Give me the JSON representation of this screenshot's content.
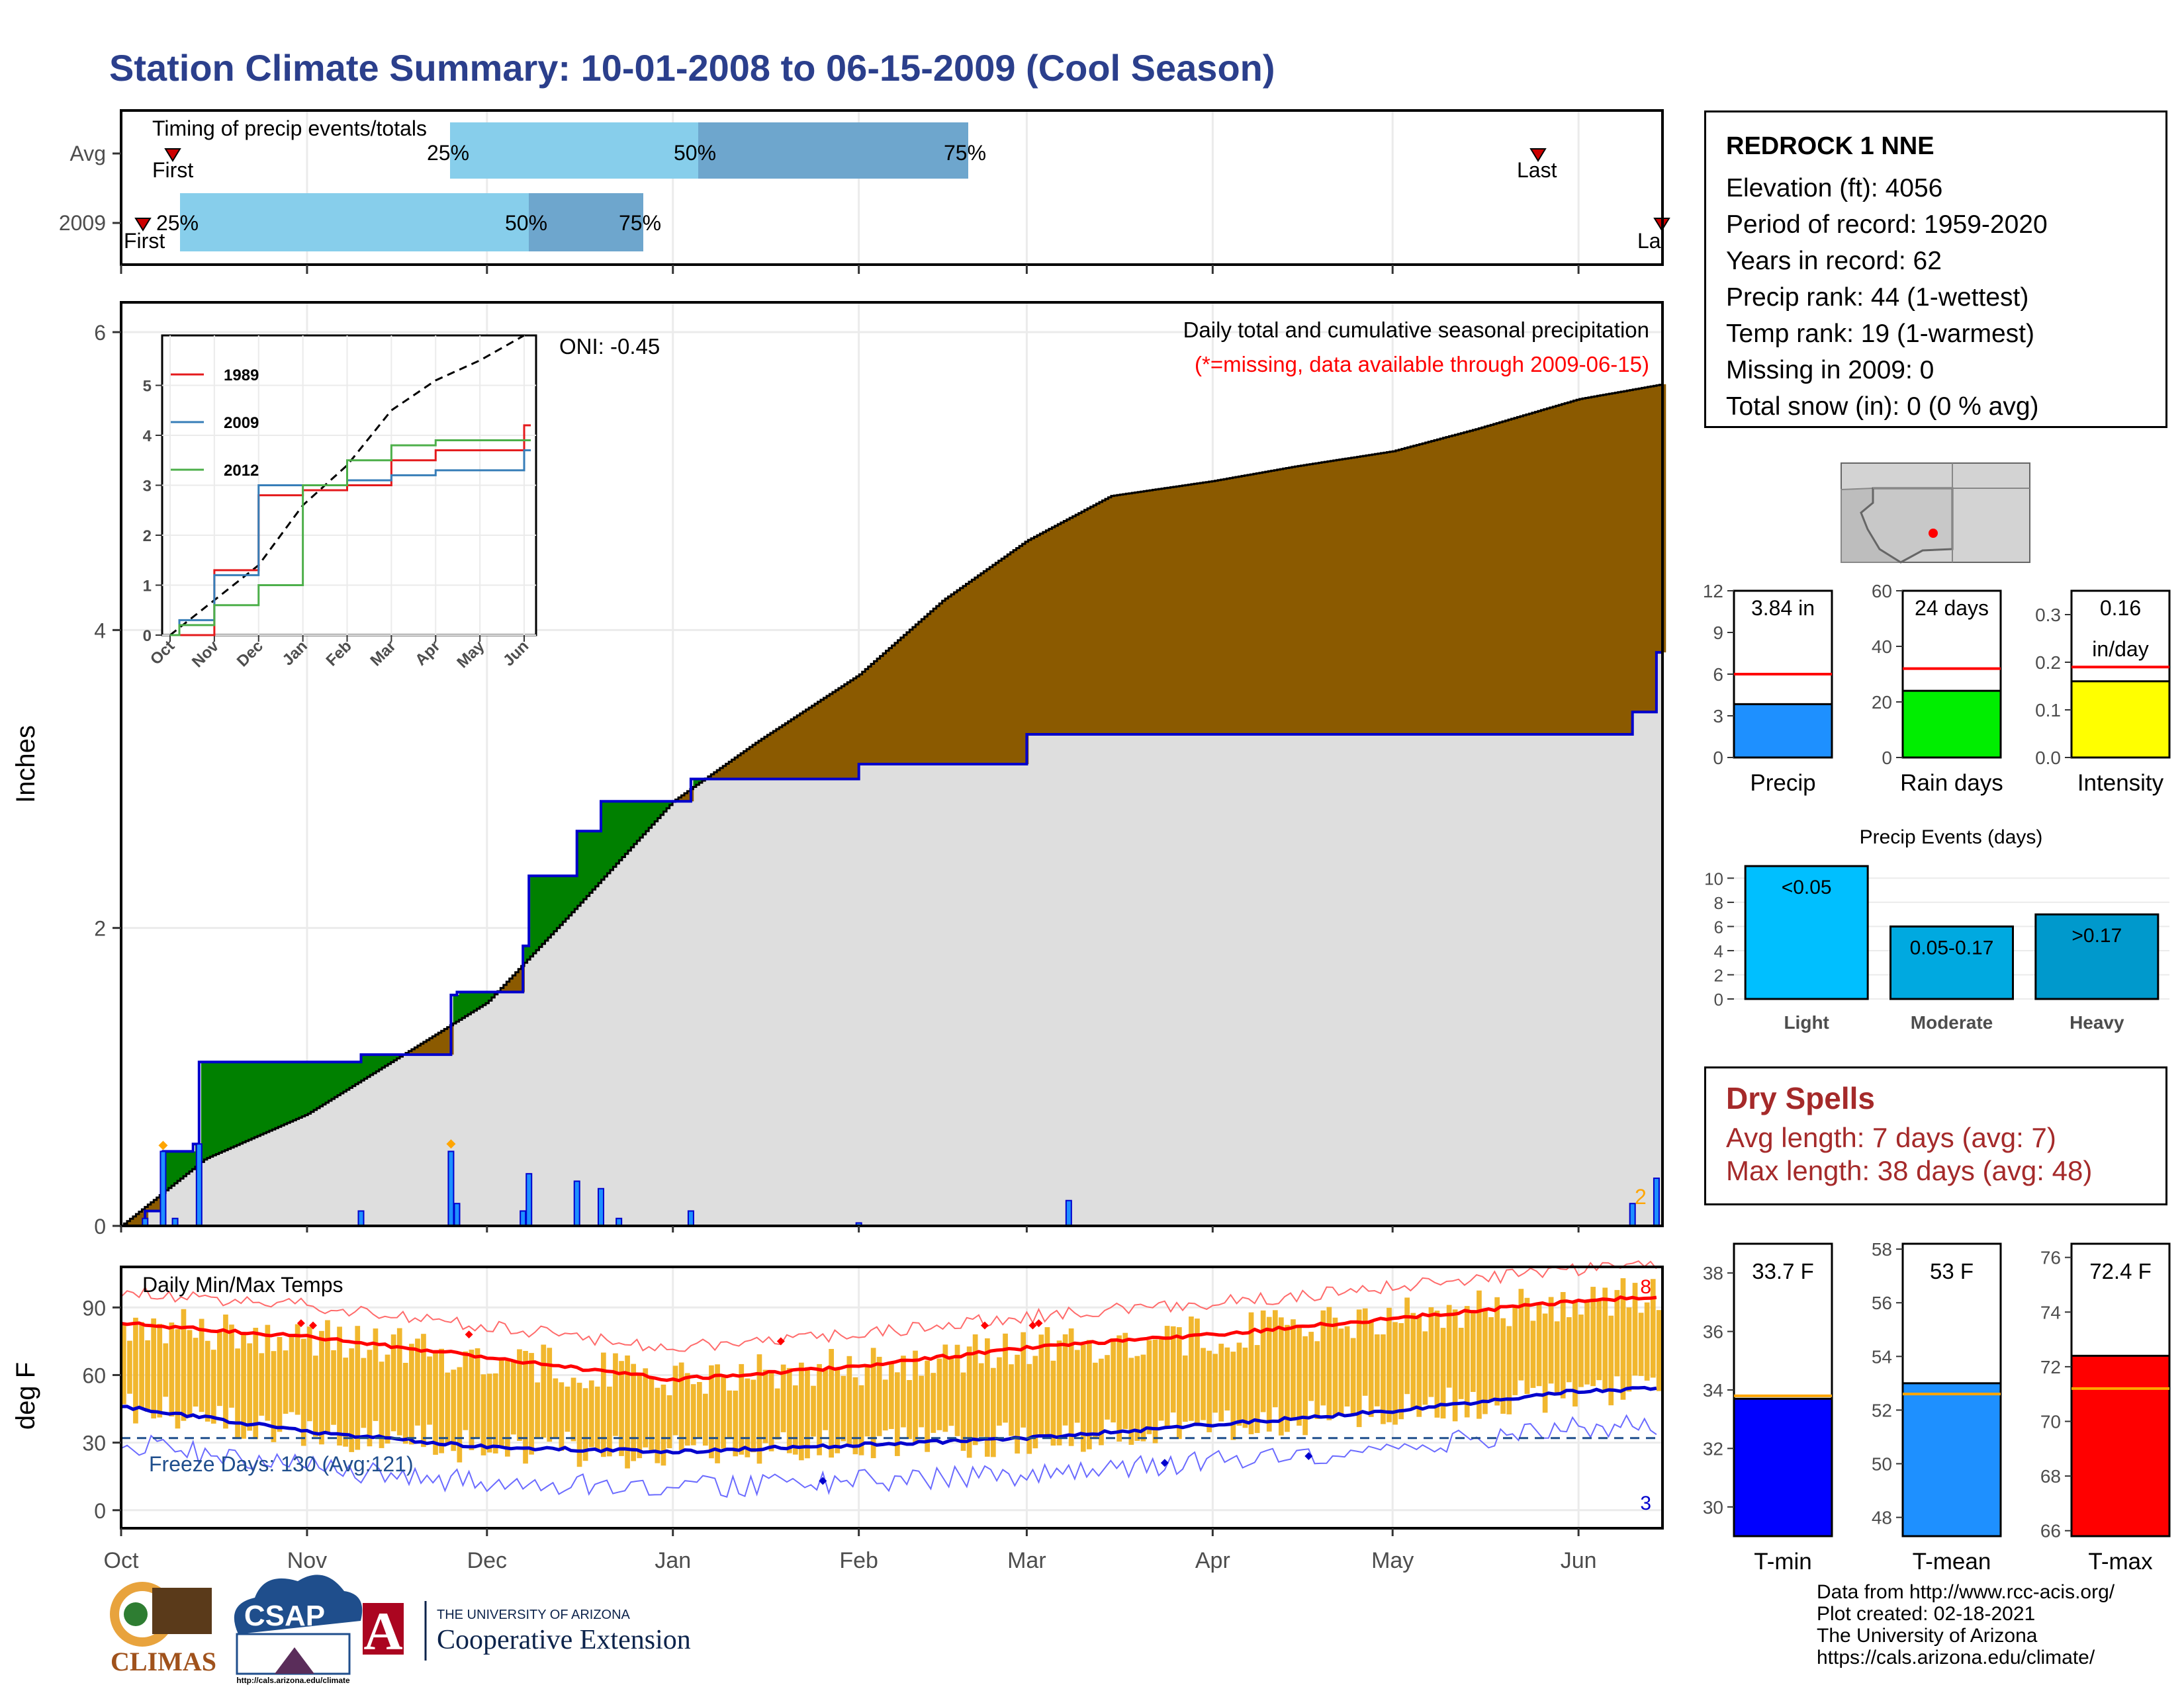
{
  "title": "Station Climate Summary: 10-01-2008 to 06-15-2009 (Cool Season)",
  "timing_panel": {
    "title": "Timing of precip events/totals",
    "rows": [
      {
        "label": "Avg",
        "first": "First",
        "p25": "25%",
        "p50": "50%",
        "p75": "75%",
        "last": "Last"
      },
      {
        "label": "2009",
        "first": "First",
        "p25": "25%",
        "p50": "50%",
        "p75": "75%",
        "last": "Last"
      }
    ]
  },
  "station": {
    "name": "REDROCK 1 NNE",
    "lines": [
      "Elevation (ft): 4056",
      "Period of record: 1959-2020",
      "Years in record: 62",
      "Precip rank: 44 (1-wettest)",
      "Temp rank: 19 (1-warmest)",
      "Missing in 2009: 0",
      "Total snow (in): 0 (0 % avg)"
    ]
  },
  "main_panel": {
    "ylabel": "Inches",
    "legend_title": "Daily total and cumulative seasonal precipitation",
    "legend_note": "(*=missing, data available through 2009-06-15)",
    "oni": "ONI: -0.45",
    "count_label": "2",
    "y_ticks": [
      "0",
      "2",
      "4",
      "6"
    ]
  },
  "inset": {
    "series": [
      "1989",
      "2009",
      "2012"
    ],
    "colors": [
      "#e41a1c",
      "#377eb8",
      "#4daf4a"
    ],
    "x_ticks": [
      "Oct",
      "Nov",
      "Dec",
      "Jan",
      "Feb",
      "Mar",
      "Apr",
      "May",
      "Jun"
    ],
    "y_ticks": [
      "0",
      "1",
      "2",
      "3",
      "4",
      "5"
    ]
  },
  "temp_panel": {
    "title": "Daily Min/Max Temps",
    "ylabel": "deg F",
    "freeze": "Freeze Days: 130 (Avg:121)",
    "count_max": "8",
    "count_min": "3",
    "y_ticks": [
      "0",
      "30",
      "60",
      "90"
    ]
  },
  "x_axis": [
    "Oct",
    "Nov",
    "Dec",
    "Jan",
    "Feb",
    "Mar",
    "Apr",
    "May",
    "Jun"
  ],
  "mini_bars": [
    {
      "label": "Precip",
      "value_text": "3.84 in",
      "ticks": [
        "0",
        "3",
        "6",
        "9",
        "12"
      ],
      "color": "#1e90ff"
    },
    {
      "label": "Rain days",
      "value_text": "24 days",
      "ticks": [
        "0",
        "20",
        "40",
        "60"
      ],
      "color": "#00ee00"
    },
    {
      "label": "Intensity",
      "value_text": "0.16",
      "value_text2": "in/day",
      "ticks": [
        "0.0",
        "0.1",
        "0.2",
        "0.3"
      ],
      "color": "#ffff00"
    }
  ],
  "events": {
    "title": "Precip Events (days)",
    "cats": [
      "Light",
      "Moderate",
      "Heavy"
    ],
    "bar_labels": [
      "<0.05",
      "0.05-0.17",
      ">0.17"
    ],
    "ticks": [
      "0",
      "2",
      "4",
      "6",
      "8",
      "10"
    ]
  },
  "dry": {
    "title": "Dry Spells",
    "avg": "Avg length: 7 days (avg: 7)",
    "max": "Max length: 38 days (avg: 48)"
  },
  "temp_bars": [
    {
      "label": "T-min",
      "value_text": "33.7 F",
      "ticks": [
        "30",
        "32",
        "34",
        "36",
        "38"
      ],
      "color": "#0000ff"
    },
    {
      "label": "T-mean",
      "value_text": "53 F",
      "ticks": [
        "48",
        "50",
        "52",
        "54",
        "56",
        "58"
      ],
      "color": "#1e90ff"
    },
    {
      "label": "T-max",
      "value_text": "72.4 F",
      "ticks": [
        "66",
        "68",
        "70",
        "72",
        "74",
        "76"
      ],
      "color": "#ff0000"
    }
  ],
  "credits": [
    "Data from http://www.rcc-acis.org/",
    "Plot created: 02-18-2021",
    "The University of Arizona",
    "https://cals.arizona.edu/climate/"
  ],
  "logos": {
    "climas": "CLIMAS",
    "csap": "CSAP",
    "csap_url": "http://cals.arizona.edu/climate",
    "ua_small": "THE UNIVERSITY OF ARIZONA",
    "ua_big": "Cooperative Extension",
    "ua_letter": "A"
  },
  "chart_data": [
    {
      "type": "area",
      "title": "Daily total and cumulative seasonal precipitation",
      "ylabel": "Inches",
      "ylim": [
        0,
        6.2
      ],
      "x_range": [
        "2008-10-01",
        "2009-06-15"
      ],
      "cumulative_2009": [
        {
          "x": "2008-10-05",
          "y": 0.1
        },
        {
          "x": "2008-10-08",
          "y": 0.5
        },
        {
          "x": "2008-10-13",
          "y": 0.55
        },
        {
          "x": "2008-10-14",
          "y": 1.1
        },
        {
          "x": "2008-11-10",
          "y": 1.15
        },
        {
          "x": "2008-11-25",
          "y": 1.55
        },
        {
          "x": "2008-11-26",
          "y": 1.57
        },
        {
          "x": "2008-12-07",
          "y": 1.88
        },
        {
          "x": "2008-12-08",
          "y": 2.35
        },
        {
          "x": "2008-12-16",
          "y": 2.65
        },
        {
          "x": "2008-12-20",
          "y": 2.85
        },
        {
          "x": "2009-01-04",
          "y": 3.0
        },
        {
          "x": "2009-02-01",
          "y": 3.1
        },
        {
          "x": "2009-03-01",
          "y": 3.3
        },
        {
          "x": "2009-06-10",
          "y": 3.45
        },
        {
          "x": "2009-06-14",
          "y": 3.85
        }
      ],
      "cumulative_avg": [
        {
          "x": "2008-10-01",
          "y": 0.0
        },
        {
          "x": "2008-10-15",
          "y": 0.45
        },
        {
          "x": "2008-11-01",
          "y": 0.75
        },
        {
          "x": "2008-11-15",
          "y": 1.1
        },
        {
          "x": "2008-12-01",
          "y": 1.5
        },
        {
          "x": "2008-12-15",
          "y": 2.1
        },
        {
          "x": "2009-01-01",
          "y": 2.85
        },
        {
          "x": "2009-01-15",
          "y": 3.25
        },
        {
          "x": "2009-02-01",
          "y": 3.7
        },
        {
          "x": "2009-02-15",
          "y": 4.2
        },
        {
          "x": "2009-03-01",
          "y": 4.6
        },
        {
          "x": "2009-03-15",
          "y": 4.9
        },
        {
          "x": "2009-04-01",
          "y": 5.0
        },
        {
          "x": "2009-04-15",
          "y": 5.1
        },
        {
          "x": "2009-05-01",
          "y": 5.2
        },
        {
          "x": "2009-05-15",
          "y": 5.35
        },
        {
          "x": "2009-06-01",
          "y": 5.55
        },
        {
          "x": "2009-06-15",
          "y": 5.65
        }
      ],
      "daily_precip": [
        {
          "x": "2008-10-05",
          "y": 0.05
        },
        {
          "x": "2008-10-08",
          "y": 0.5
        },
        {
          "x": "2008-10-10",
          "y": 0.05
        },
        {
          "x": "2008-10-14",
          "y": 0.55
        },
        {
          "x": "2008-11-10",
          "y": 0.1
        },
        {
          "x": "2008-11-25",
          "y": 0.5
        },
        {
          "x": "2008-11-26",
          "y": 0.15
        },
        {
          "x": "2008-12-07",
          "y": 0.1
        },
        {
          "x": "2008-12-08",
          "y": 0.35
        },
        {
          "x": "2008-12-16",
          "y": 0.3
        },
        {
          "x": "2008-12-20",
          "y": 0.25
        },
        {
          "x": "2008-12-23",
          "y": 0.05
        },
        {
          "x": "2009-01-04",
          "y": 0.1
        },
        {
          "x": "2009-02-01",
          "y": 0.02
        },
        {
          "x": "2009-03-08",
          "y": 0.17
        },
        {
          "x": "2009-06-10",
          "y": 0.15
        },
        {
          "x": "2009-06-14",
          "y": 0.32
        }
      ]
    },
    {
      "type": "line",
      "title": "",
      "x": [
        "Oct",
        "Nov",
        "Dec",
        "Jan",
        "Feb",
        "Mar",
        "Apr",
        "May",
        "Jun"
      ],
      "ylim": [
        0,
        6
      ],
      "series": [
        {
          "name": "1989",
          "values": [
            0.0,
            1.3,
            2.8,
            2.9,
            3.0,
            3.5,
            3.7,
            3.7,
            4.2
          ]
        },
        {
          "name": "2009",
          "values": [
            0.3,
            1.2,
            3.0,
            3.0,
            3.1,
            3.2,
            3.3,
            3.3,
            3.7
          ]
        },
        {
          "name": "2012",
          "values": [
            0.2,
            0.6,
            1.0,
            3.0,
            3.5,
            3.8,
            3.9,
            3.9,
            3.9
          ]
        }
      ]
    },
    {
      "type": "bar",
      "title": "Daily Min/Max Temps",
      "ylabel": "deg F",
      "ylim": [
        -8,
        108
      ],
      "x": [
        "Oct",
        "Nov",
        "Dec",
        "Jan",
        "Feb",
        "Mar",
        "Apr",
        "May",
        "Jun"
      ],
      "series": [
        {
          "name": "",
          "values": [
            83,
            77,
            68,
            58,
            64,
            72,
            78,
            85,
            93
          ]
        },
        {
          "name": "",
          "values": [
            46,
            35,
            28,
            26,
            29,
            32,
            38,
            44,
            53
          ]
        }
      ]
    },
    {
      "type": "bar",
      "title": "Precip Events (days)",
      "categories": [
        "Light",
        "Moderate",
        "Heavy"
      ],
      "values": [
        11,
        6,
        7
      ],
      "ylim": [
        0,
        11.5
      ]
    },
    {
      "type": "bar",
      "categories": [
        "Precip",
        "Rain days",
        "Intensity"
      ],
      "values": [
        3.84,
        24,
        0.16
      ],
      "avg": [
        6.0,
        32,
        0.19
      ]
    },
    {
      "type": "bar",
      "categories": [
        "T-min",
        "T-mean",
        "T-max"
      ],
      "values": [
        33.7,
        53,
        72.4
      ],
      "avg": [
        33.8,
        52.6,
        71.2
      ]
    }
  ]
}
